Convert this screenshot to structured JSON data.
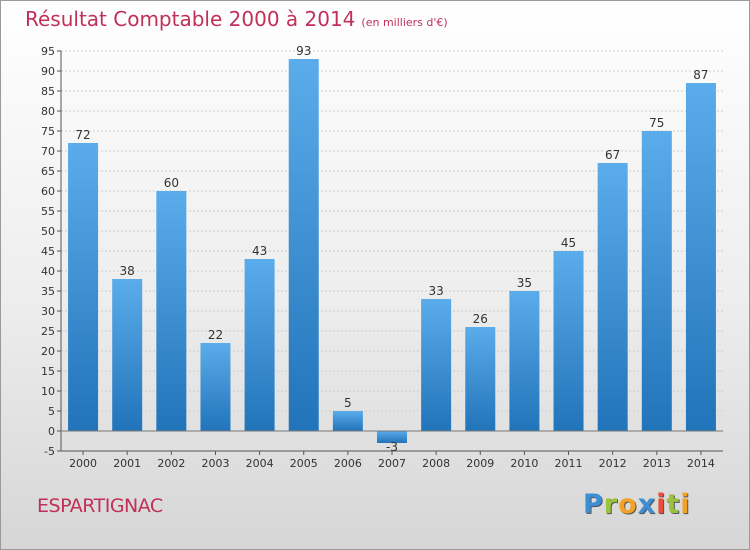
{
  "header": {
    "title": "Résultat Comptable 2000 à 2014",
    "subtitle": "(en milliers d'€)"
  },
  "footer": {
    "commune": "ESPARTIGNAC",
    "logo_letters": [
      {
        "ch": "P",
        "color": "#3b8fd6"
      },
      {
        "ch": "r",
        "color": "#9ac23c"
      },
      {
        "ch": "o",
        "color": "#f2a227"
      },
      {
        "ch": "x",
        "color": "#3b8fd6"
      },
      {
        "ch": "i",
        "color": "#e94e3a"
      },
      {
        "ch": "t",
        "color": "#9ac23c"
      },
      {
        "ch": "i",
        "color": "#f2a227"
      }
    ]
  },
  "colors": {
    "title": "#c0305a",
    "bar_light": "#5aacea",
    "bar_dark": "#2274ba",
    "grid": "#cccccc"
  },
  "chart_data": {
    "type": "bar",
    "categories": [
      "2000",
      "2001",
      "2002",
      "2003",
      "2004",
      "2005",
      "2006",
      "2007",
      "2008",
      "2009",
      "2010",
      "2011",
      "2012",
      "2013",
      "2014"
    ],
    "values": [
      72,
      38,
      60,
      22,
      43,
      93,
      5,
      -3,
      33,
      26,
      35,
      45,
      67,
      75,
      87
    ],
    "data_labels": [
      "72",
      "38",
      "60",
      "22",
      "43",
      "93",
      "5",
      "-3",
      "33",
      "26",
      "35",
      "45",
      "67",
      "75",
      "87"
    ],
    "ylim": [
      -5,
      95
    ],
    "yticks": [
      -5,
      0,
      5,
      10,
      15,
      20,
      25,
      30,
      35,
      40,
      45,
      50,
      55,
      60,
      65,
      70,
      75,
      80,
      85,
      90,
      95
    ],
    "grid": true,
    "title": "Résultat Comptable 2000 à 2014",
    "xlabel": "",
    "ylabel": ""
  }
}
